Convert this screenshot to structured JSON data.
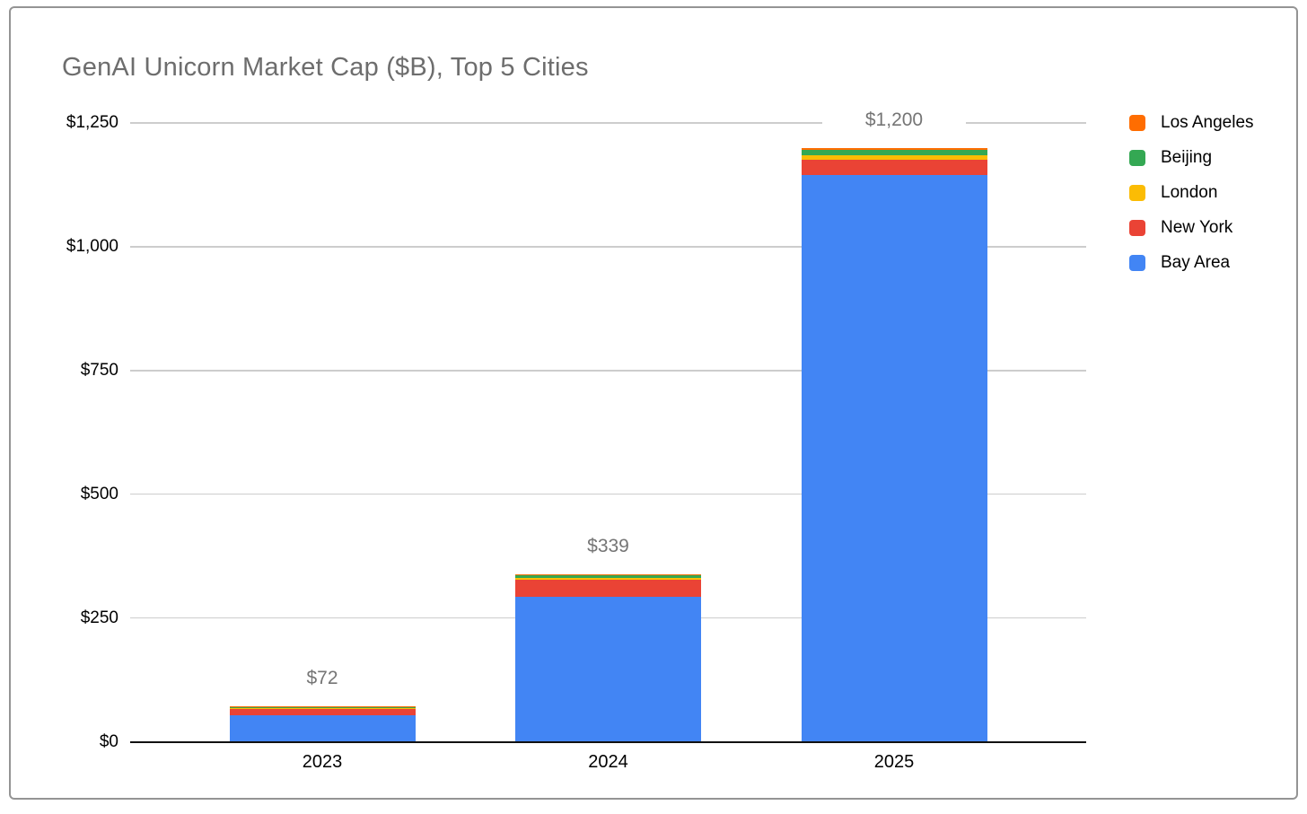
{
  "title": "GenAI Unicorn Market Cap ($B), Top 5 Cities",
  "colors": {
    "bay_area": "#4285F4",
    "new_york": "#EA4335",
    "london": "#FBBC04",
    "beijing": "#34A853",
    "los_angeles": "#FF6D01",
    "title_text": "#6d6d6d",
    "data_label_text": "#757575",
    "gridline": "#cdcdcd",
    "axis_line": "#111111",
    "card_border": "#949494"
  },
  "chart_data": {
    "type": "bar",
    "stacked": true,
    "title": "GenAI Unicorn Market Cap ($B), Top 5 Cities",
    "categories": [
      "2023",
      "2024",
      "2025"
    ],
    "series": [
      {
        "name": "Bay Area",
        "color": "#4285F4",
        "values": [
          53,
          293,
          1145
        ]
      },
      {
        "name": "New York",
        "color": "#EA4335",
        "values": [
          14,
          34,
          30
        ]
      },
      {
        "name": "London",
        "color": "#FBBC04",
        "values": [
          1,
          4,
          9
        ]
      },
      {
        "name": "Beijing",
        "color": "#34A853",
        "values": [
          3,
          7,
          12
        ]
      },
      {
        "name": "Los Angeles",
        "color": "#FF6D01",
        "values": [
          1,
          1,
          4
        ]
      }
    ],
    "totals": [
      72,
      339,
      1200
    ],
    "total_labels": [
      "$72",
      "$339",
      "$1,200"
    ],
    "xlabel": "",
    "ylabel": "",
    "ylim": [
      0,
      1250
    ],
    "y_tick_values": [
      0,
      250,
      500,
      750,
      1000,
      1250
    ],
    "y_ticks": [
      "$0",
      "$250",
      "$500",
      "$750",
      "$1,000",
      "$1,250"
    ],
    "grid": true,
    "legend_position": "right",
    "legend": [
      "Los Angeles",
      "Beijing",
      "London",
      "New York",
      "Bay Area"
    ]
  }
}
